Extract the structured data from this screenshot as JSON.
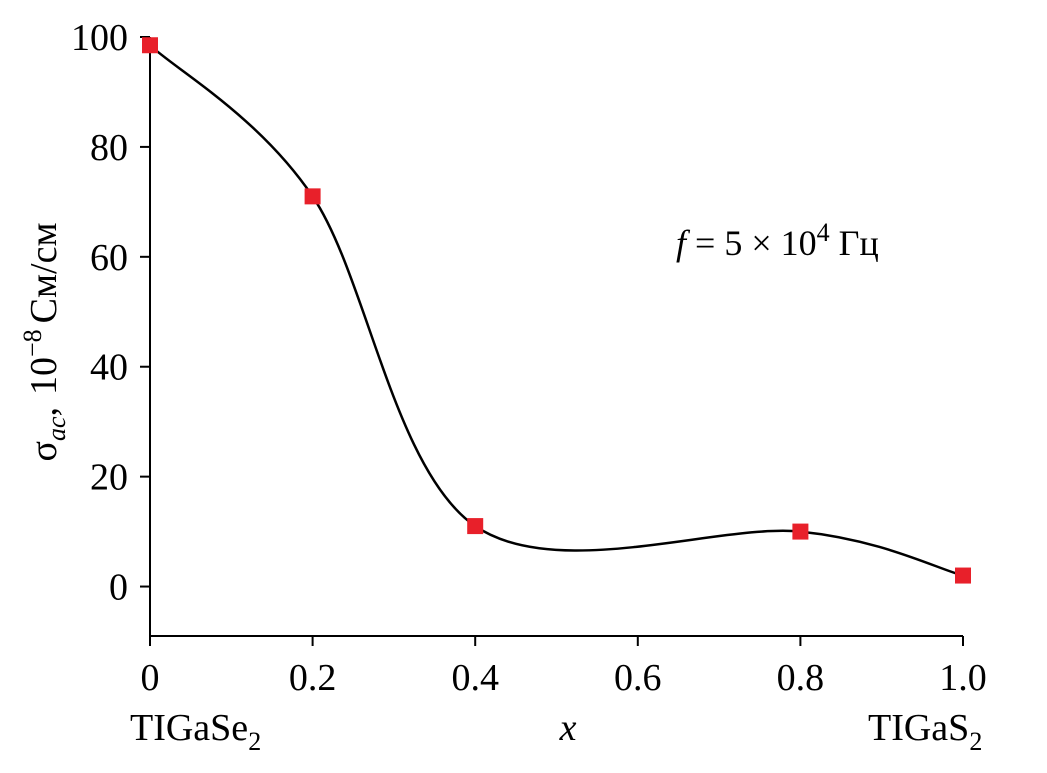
{
  "chart_data": {
    "type": "line",
    "x": [
      0.0,
      0.2,
      0.4,
      0.8,
      1.0
    ],
    "series": [
      {
        "values": [
          98.5,
          71.0,
          11.0,
          10.0,
          2.0
        ],
        "marker": "square",
        "marker_color": "#e8202a",
        "line_color": "#000000"
      }
    ],
    "xlim": [
      0,
      1.0
    ],
    "ylim": [
      -9,
      100
    ],
    "x_ticks": [
      "0",
      "0.2",
      "0.4",
      "0.6",
      "0.8",
      "1.0"
    ],
    "y_ticks": [
      "0",
      "20",
      "40",
      "60",
      "80",
      "100"
    ],
    "xlabel": "x",
    "ylabel": {
      "symbol": "σ",
      "subscript": "ac",
      "separator": ",",
      "scale_base": "10",
      "scale_exponent": "−8",
      "unit": "См/см"
    },
    "x_end_labels": {
      "left": {
        "base": "TIGaSe",
        "subscript": "2"
      },
      "right": {
        "base": "TIGaS",
        "subscript": "2"
      }
    },
    "annotation": {
      "var": "f",
      "eq": " = 5 × 10",
      "exponent": "4",
      "unit": " Гц"
    },
    "grid": false,
    "legend": "none"
  }
}
